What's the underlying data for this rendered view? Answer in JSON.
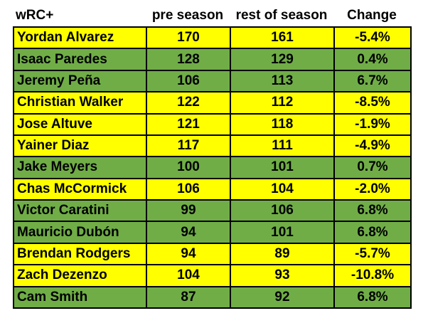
{
  "chart_data": {
    "type": "table",
    "columns": [
      "wRC+",
      "pre season",
      "rest of season",
      "Change"
    ],
    "rows": [
      {
        "player": "Yordan Alvarez",
        "pre_season": 170,
        "rest_of_season": 161,
        "change": "-5.4%"
      },
      {
        "player": "Isaac Paredes",
        "pre_season": 128,
        "rest_of_season": 129,
        "change": "0.4%"
      },
      {
        "player": "Jeremy Peña",
        "pre_season": 106,
        "rest_of_season": 113,
        "change": "6.7%"
      },
      {
        "player": "Christian Walker",
        "pre_season": 122,
        "rest_of_season": 112,
        "change": "-8.5%"
      },
      {
        "player": "Jose Altuve",
        "pre_season": 121,
        "rest_of_season": 118,
        "change": "-1.9%"
      },
      {
        "player": "Yainer Diaz",
        "pre_season": 117,
        "rest_of_season": 111,
        "change": "-4.9%"
      },
      {
        "player": "Jake Meyers",
        "pre_season": 100,
        "rest_of_season": 101,
        "change": "0.7%"
      },
      {
        "player": "Chas McCormick",
        "pre_season": 106,
        "rest_of_season": 104,
        "change": "-2.0%"
      },
      {
        "player": "Victor Caratini",
        "pre_season": 99,
        "rest_of_season": 106,
        "change": "6.8%"
      },
      {
        "player": "Mauricio Dubón",
        "pre_season": 94,
        "rest_of_season": 101,
        "change": "6.8%"
      },
      {
        "player": "Brendan Rodgers",
        "pre_season": 94,
        "rest_of_season": 89,
        "change": "-5.7%"
      },
      {
        "player": "Zach Dezenzo",
        "pre_season": 104,
        "rest_of_season": 93,
        "change": "-10.8%"
      },
      {
        "player": "Cam Smith",
        "pre_season": 87,
        "rest_of_season": 92,
        "change": "6.8%"
      }
    ],
    "colors": {
      "decline": "#ffff00",
      "increase": "#70ad47",
      "border": "#000000"
    }
  }
}
